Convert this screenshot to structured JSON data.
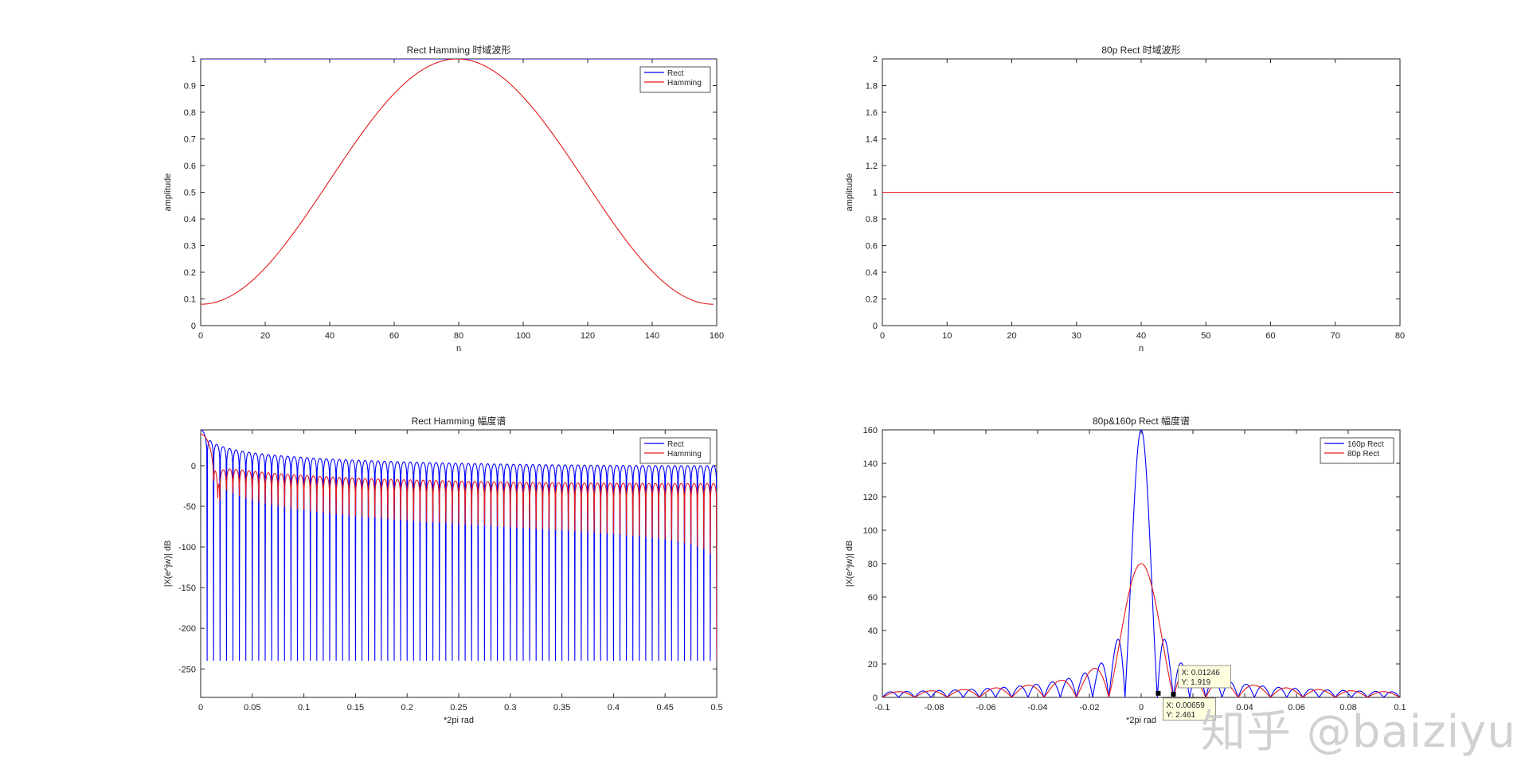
{
  "watermark": "知乎 @baiziyu",
  "colors": {
    "blue": "#0000ff",
    "red": "#e41a1c",
    "axis": "#262626"
  },
  "chart_data": [
    {
      "type": "line",
      "title": "Rect Hamming 时域波形",
      "xlabel": "n",
      "ylabel": "amplitude",
      "xlim": [
        0,
        160
      ],
      "ylim": [
        0,
        1
      ],
      "xticks": [
        0,
        20,
        40,
        60,
        80,
        100,
        120,
        140,
        160
      ],
      "yticks": [
        0,
        0.1,
        0.2,
        0.3,
        0.4,
        0.5,
        0.6,
        0.7,
        0.8,
        0.9,
        1
      ],
      "xtick_labels": [
        "0",
        "20",
        "40",
        "60",
        "80",
        "100",
        "120",
        "140",
        "160"
      ],
      "ytick_labels": [
        "0",
        "0.1",
        "0.2",
        "0.3",
        "0.4",
        "0.5",
        "0.6",
        "0.7",
        "0.8",
        "0.9",
        "1"
      ],
      "legend_position": "top-right",
      "series": [
        {
          "name": "Rect",
          "color": "#0000ff",
          "x": [
            0,
            159
          ],
          "y": [
            1,
            1
          ]
        },
        {
          "name": "Hamming",
          "color": "#e41a1c",
          "x": [
            0,
            10,
            20,
            30,
            40,
            50,
            60,
            70,
            80,
            90,
            100,
            110,
            120,
            130,
            140,
            150,
            159
          ],
          "y": [
            0.08,
            0.115,
            0.213,
            0.36,
            0.535,
            0.71,
            0.857,
            0.957,
            1.0,
            0.975,
            0.89,
            0.76,
            0.6,
            0.43,
            0.27,
            0.14,
            0.08
          ]
        }
      ]
    },
    {
      "type": "line",
      "title": "80p Rect 时域波形",
      "xlabel": "n",
      "ylabel": "amplitude",
      "xlim": [
        0,
        80
      ],
      "ylim": [
        0,
        2
      ],
      "xticks": [
        0,
        10,
        20,
        30,
        40,
        50,
        60,
        70,
        80
      ],
      "yticks": [
        0,
        0.2,
        0.4,
        0.6,
        0.8,
        1,
        1.2,
        1.4,
        1.6,
        1.8,
        2
      ],
      "xtick_labels": [
        "0",
        "10",
        "20",
        "30",
        "40",
        "50",
        "60",
        "70",
        "80"
      ],
      "ytick_labels": [
        "0",
        "0.2",
        "0.4",
        "0.6",
        "0.8",
        "1",
        "1.2",
        "1.4",
        "1.6",
        "1.8",
        "2"
      ],
      "series": [
        {
          "name": "",
          "color": "#e41a1c",
          "x": [
            0,
            79
          ],
          "y": [
            1,
            1
          ]
        }
      ]
    },
    {
      "type": "line",
      "title": "Rect Hamming 幅度谱",
      "xlabel": "*2pi rad",
      "ylabel": "|X(e^jw)| dB",
      "xlim": [
        0,
        0.5
      ],
      "ylim": [
        -285,
        44
      ],
      "xticks": [
        0,
        0.05,
        0.1,
        0.15,
        0.2,
        0.25,
        0.3,
        0.35,
        0.4,
        0.45,
        0.5
      ],
      "yticks": [
        -250,
        -200,
        -150,
        -100,
        -50,
        0
      ],
      "xtick_labels": [
        "0",
        "0.05",
        "0.1",
        "0.15",
        "0.2",
        "0.25",
        "0.3",
        "0.35",
        "0.4",
        "0.45",
        "0.5"
      ],
      "ytick_labels": [
        "-250",
        "-200",
        "-150",
        "-100",
        "-50",
        "0"
      ],
      "legend_position": "top-right",
      "series": [
        {
          "name": "Rect",
          "color": "#0000ff",
          "model": "rect_db",
          "N": 160
        },
        {
          "name": "Hamming",
          "color": "#e41a1c",
          "model": "hamming_db",
          "N": 160
        }
      ]
    },
    {
      "type": "line",
      "title": "80p&160p Rect 幅度谱",
      "xlabel": "*2pi rad",
      "ylabel": "|X(e^jw)| dB",
      "xlim": [
        -0.1,
        0.1
      ],
      "ylim": [
        0,
        160
      ],
      "xticks": [
        -0.1,
        -0.08,
        -0.06,
        -0.04,
        -0.02,
        0,
        0.02,
        0.04,
        0.06,
        0.08,
        0.1
      ],
      "yticks": [
        0,
        20,
        40,
        60,
        80,
        100,
        120,
        140,
        160
      ],
      "xtick_labels": [
        "-0.1",
        "-0.08",
        "-0.06",
        "-0.04",
        "-0.02",
        "0",
        "0.02",
        "0.04",
        "0.06",
        "0.08",
        "0.1"
      ],
      "ytick_labels": [
        "0",
        "20",
        "40",
        "60",
        "80",
        "100",
        "120",
        "140",
        "160"
      ],
      "legend_position": "top-right",
      "series": [
        {
          "name": "160p Rect",
          "color": "#0000ff",
          "model": "rect_mag",
          "N": 160
        },
        {
          "name": "80p Rect",
          "color": "#e41a1c",
          "model": "rect_mag",
          "N": 80
        }
      ],
      "datatips": [
        {
          "x": 0.01246,
          "y": 1.919,
          "label_x": "X: 0.01246",
          "label_y": "Y: 1.919"
        },
        {
          "x": 0.00659,
          "y": 2.461,
          "label_x": "X: 0.00659",
          "label_y": "Y: 2.461"
        }
      ]
    }
  ]
}
